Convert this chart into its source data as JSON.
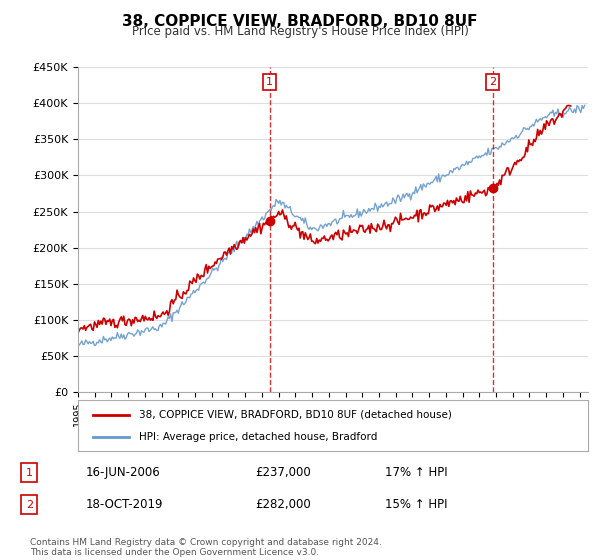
{
  "title": "38, COPPICE VIEW, BRADFORD, BD10 8UF",
  "subtitle": "Price paid vs. HM Land Registry's House Price Index (HPI)",
  "ytick_values": [
    0,
    50000,
    100000,
    150000,
    200000,
    250000,
    300000,
    350000,
    400000,
    450000
  ],
  "ylim": [
    0,
    450000
  ],
  "xlim_start": 1995.0,
  "xlim_end": 2025.5,
  "sale1_x": 2006.46,
  "sale1_y": 237000,
  "sale2_x": 2019.79,
  "sale2_y": 282000,
  "red_color": "#cc0000",
  "blue_color": "#6699cc",
  "legend_line1": "38, COPPICE VIEW, BRADFORD, BD10 8UF (detached house)",
  "legend_line2": "HPI: Average price, detached house, Bradford",
  "table_row1": [
    "1",
    "16-JUN-2006",
    "£237,000",
    "17% ↑ HPI"
  ],
  "table_row2": [
    "2",
    "18-OCT-2019",
    "£282,000",
    "15% ↑ HPI"
  ],
  "footnote": "Contains HM Land Registry data © Crown copyright and database right 2024.\nThis data is licensed under the Open Government Licence v3.0.",
  "background_color": "#ffffff",
  "grid_color": "#dddddd"
}
